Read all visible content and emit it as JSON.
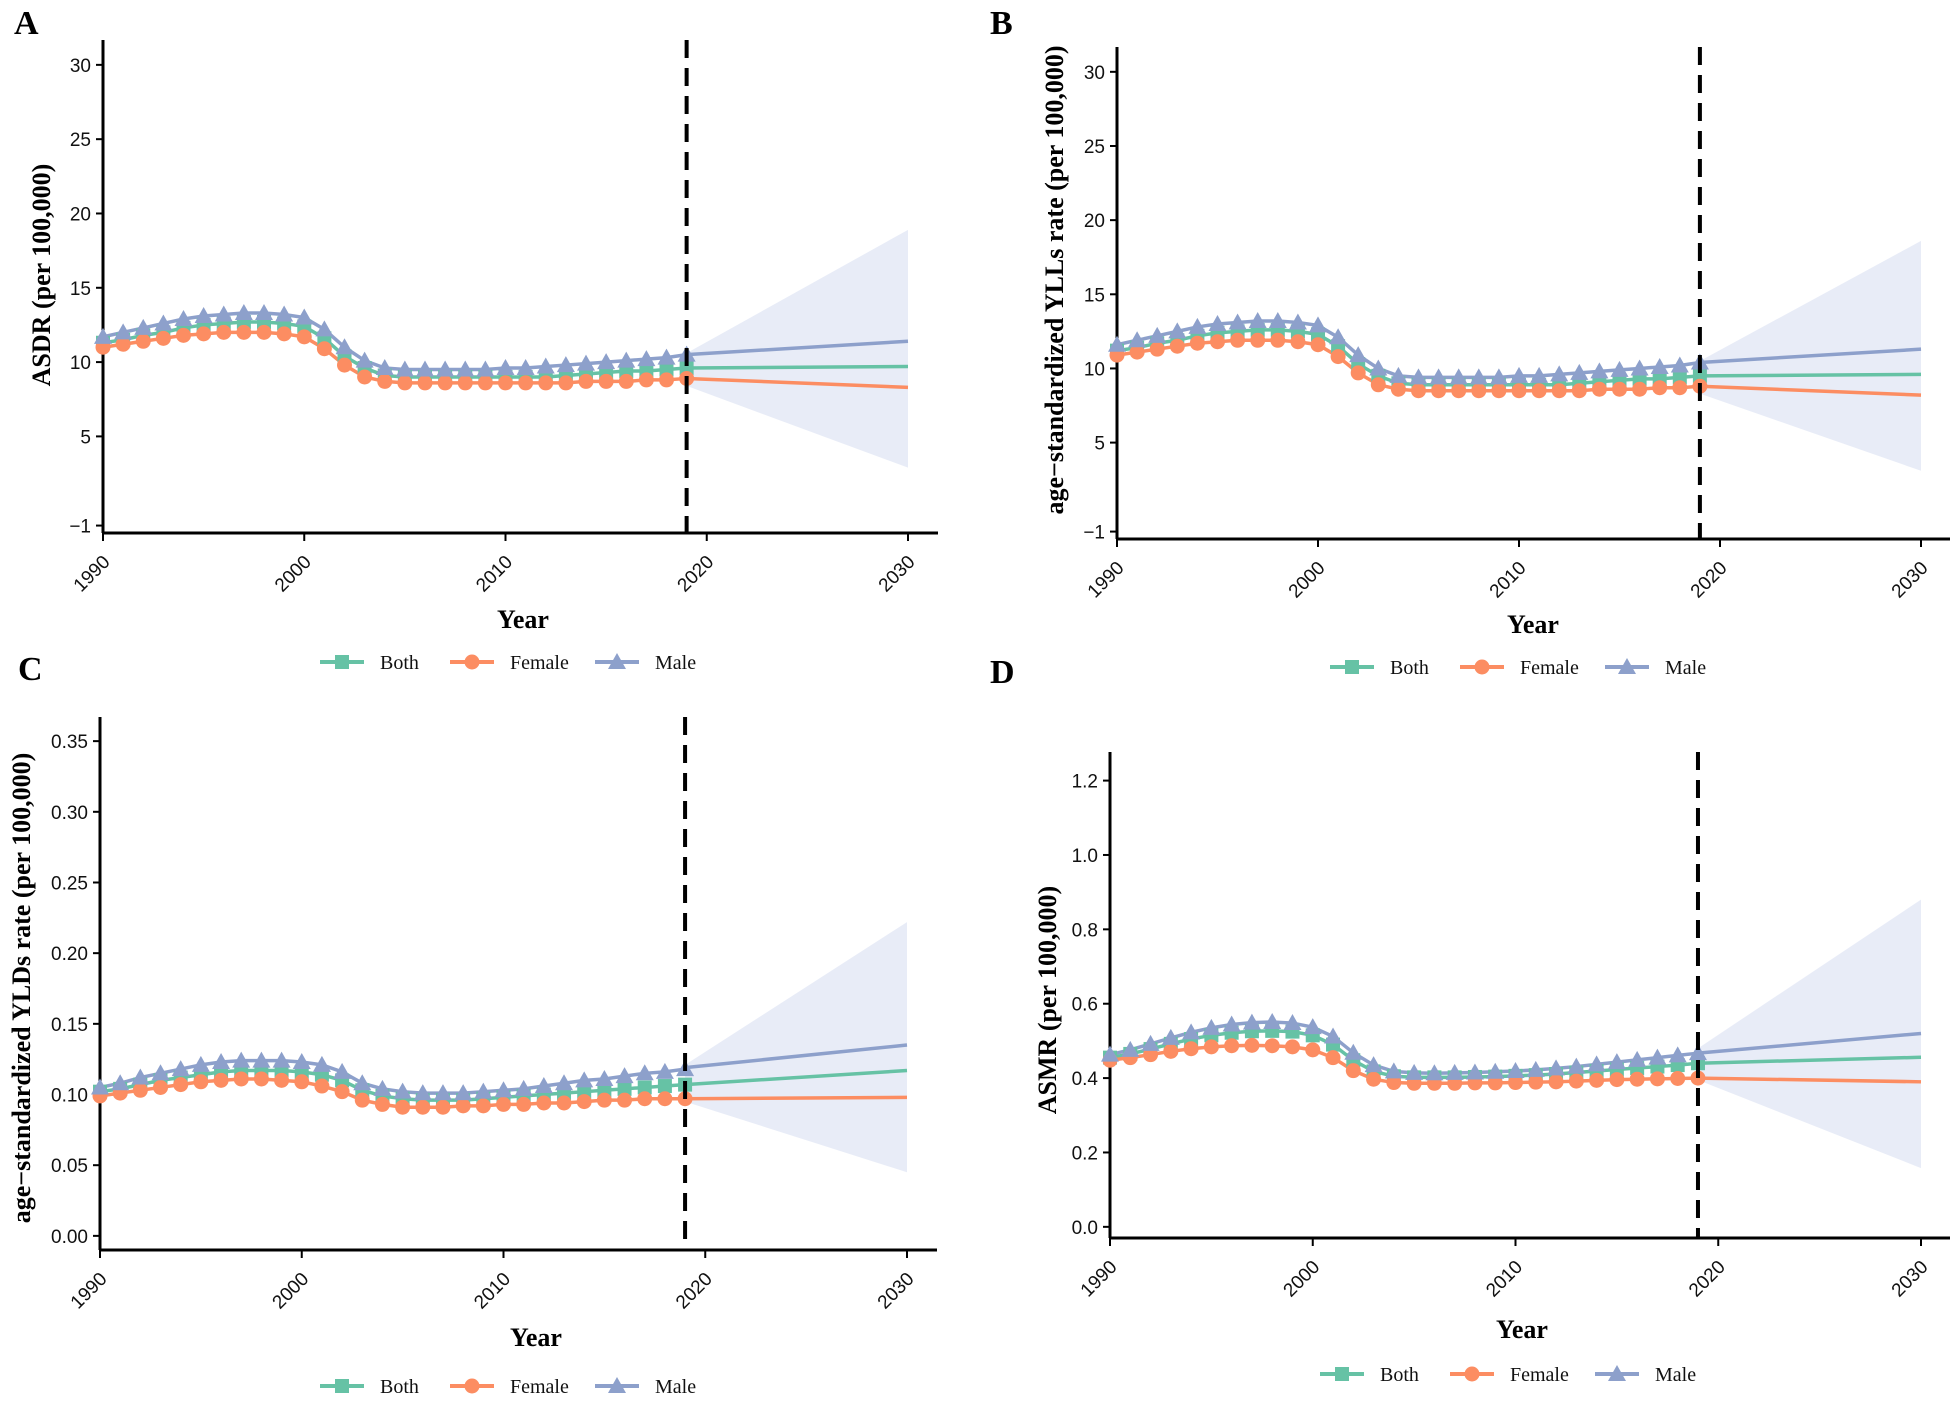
{
  "colors": {
    "both": "#66c2a5",
    "female": "#fc8d62",
    "male": "#8da0cb",
    "band": "#e4e9f6",
    "axis": "#000000"
  },
  "legend": {
    "both": "Both",
    "female": "Female",
    "male": "Male"
  },
  "chart_data": [
    {
      "id": "A",
      "letter": "A",
      "type": "line",
      "xlabel": "Year",
      "ylabel": "ASDR (per 100,000)",
      "xlim": [
        1990,
        2030
      ],
      "ylim": [
        -1.5,
        31
      ],
      "xticks": [
        1990,
        2000,
        2010,
        2020,
        2030
      ],
      "yticks": [
        -1,
        5,
        10,
        15,
        20,
        25,
        30
      ],
      "ytick_labels": [
        "−1",
        "5",
        "10",
        "15",
        "20",
        "25",
        "30"
      ],
      "observed_end": 2019,
      "x": [
        1990,
        1991,
        1992,
        1993,
        1994,
        1995,
        1996,
        1997,
        1998,
        1999,
        2000,
        2001,
        2002,
        2003,
        2004,
        2005,
        2006,
        2007,
        2008,
        2009,
        2010,
        2011,
        2012,
        2013,
        2014,
        2015,
        2016,
        2017,
        2018,
        2019
      ],
      "series": [
        {
          "key": "both",
          "name": "Both",
          "values": [
            11.3,
            11.5,
            11.8,
            12.0,
            12.3,
            12.5,
            12.6,
            12.7,
            12.7,
            12.6,
            12.4,
            11.6,
            10.4,
            9.6,
            9.1,
            9.0,
            9.0,
            9.0,
            9.0,
            9.0,
            9.0,
            9.0,
            9.0,
            9.1,
            9.2,
            9.3,
            9.4,
            9.4,
            9.5,
            9.6
          ]
        },
        {
          "key": "female",
          "name": "Female",
          "values": [
            11.0,
            11.2,
            11.4,
            11.6,
            11.8,
            11.9,
            12.0,
            12.0,
            12.0,
            11.9,
            11.7,
            10.9,
            9.8,
            9.0,
            8.7,
            8.6,
            8.6,
            8.6,
            8.6,
            8.6,
            8.6,
            8.6,
            8.6,
            8.6,
            8.7,
            8.7,
            8.7,
            8.8,
            8.8,
            8.9
          ]
        },
        {
          "key": "male",
          "name": "Male",
          "values": [
            11.7,
            12.0,
            12.3,
            12.6,
            12.9,
            13.1,
            13.2,
            13.3,
            13.3,
            13.2,
            13.0,
            12.2,
            11.0,
            10.1,
            9.6,
            9.5,
            9.5,
            9.5,
            9.5,
            9.5,
            9.6,
            9.6,
            9.7,
            9.8,
            9.9,
            10.0,
            10.1,
            10.2,
            10.3,
            10.5
          ]
        }
      ],
      "projection": {
        "x": [
          2019,
          2030
        ],
        "series": [
          {
            "key": "both",
            "values": [
              9.6,
              9.7
            ]
          },
          {
            "key": "female",
            "values": [
              8.9,
              8.3
            ]
          },
          {
            "key": "male",
            "values": [
              10.5,
              11.4
            ]
          }
        ],
        "band_upper": [
          10.6,
          18.9
        ],
        "band_lower": [
          8.4,
          2.9
        ]
      }
    },
    {
      "id": "B",
      "letter": "B",
      "type": "line",
      "xlabel": "Year",
      "ylabel": "age−standardized YLLs rate (per 100,000)",
      "xlim": [
        1990,
        2030
      ],
      "ylim": [
        -1.5,
        31
      ],
      "xticks": [
        1990,
        2000,
        2010,
        2020,
        2030
      ],
      "yticks": [
        -1,
        5,
        10,
        15,
        20,
        25,
        30
      ],
      "ytick_labels": [
        "−1",
        "5",
        "10",
        "15",
        "20",
        "25",
        "30"
      ],
      "observed_end": 2019,
      "x": [
        1990,
        1991,
        1992,
        1993,
        1994,
        1995,
        1996,
        1997,
        1998,
        1999,
        2000,
        2001,
        2002,
        2003,
        2004,
        2005,
        2006,
        2007,
        2008,
        2009,
        2010,
        2011,
        2012,
        2013,
        2014,
        2015,
        2016,
        2017,
        2018,
        2019
      ],
      "series": [
        {
          "key": "both",
          "name": "Both",
          "values": [
            11.2,
            11.4,
            11.7,
            11.9,
            12.2,
            12.4,
            12.5,
            12.6,
            12.6,
            12.5,
            12.3,
            11.5,
            10.3,
            9.5,
            9.0,
            8.9,
            8.9,
            8.9,
            8.9,
            8.9,
            8.9,
            8.9,
            8.9,
            9.0,
            9.1,
            9.2,
            9.3,
            9.3,
            9.4,
            9.5
          ]
        },
        {
          "key": "female",
          "name": "Female",
          "values": [
            10.9,
            11.1,
            11.3,
            11.5,
            11.7,
            11.8,
            11.9,
            11.9,
            11.9,
            11.8,
            11.6,
            10.8,
            9.7,
            8.9,
            8.6,
            8.5,
            8.5,
            8.5,
            8.5,
            8.5,
            8.5,
            8.5,
            8.5,
            8.5,
            8.6,
            8.6,
            8.6,
            8.7,
            8.7,
            8.8
          ]
        },
        {
          "key": "male",
          "name": "Male",
          "values": [
            11.6,
            11.9,
            12.2,
            12.5,
            12.8,
            13.0,
            13.1,
            13.2,
            13.2,
            13.1,
            12.9,
            12.1,
            10.9,
            10.0,
            9.5,
            9.4,
            9.4,
            9.4,
            9.4,
            9.4,
            9.5,
            9.5,
            9.6,
            9.7,
            9.8,
            9.9,
            10.0,
            10.1,
            10.2,
            10.4
          ]
        }
      ],
      "projection": {
        "x": [
          2019,
          2030
        ],
        "series": [
          {
            "key": "both",
            "values": [
              9.5,
              9.6
            ]
          },
          {
            "key": "female",
            "values": [
              8.8,
              8.2
            ]
          },
          {
            "key": "male",
            "values": [
              10.4,
              11.3
            ]
          }
        ],
        "band_upper": [
          10.5,
          18.6
        ],
        "band_lower": [
          8.3,
          3.1
        ]
      }
    },
    {
      "id": "C",
      "letter": "C",
      "type": "line",
      "xlabel": "Year",
      "ylabel": "age−standardized YLDs rate (per 100,000)",
      "xlim": [
        1990,
        2030
      ],
      "ylim": [
        -0.01,
        0.36
      ],
      "xticks": [
        1990,
        2000,
        2010,
        2020,
        2030
      ],
      "yticks": [
        0.0,
        0.05,
        0.1,
        0.15,
        0.2,
        0.25,
        0.3,
        0.35
      ],
      "ytick_labels": [
        "0.00",
        "0.05",
        "0.10",
        "0.15",
        "0.20",
        "0.25",
        "0.30",
        "0.35"
      ],
      "observed_end": 2019,
      "x": [
        1990,
        1991,
        1992,
        1993,
        1994,
        1995,
        1996,
        1997,
        1998,
        1999,
        2000,
        2001,
        2002,
        2003,
        2004,
        2005,
        2006,
        2007,
        2008,
        2009,
        2010,
        2011,
        2012,
        2013,
        2014,
        2015,
        2016,
        2017,
        2018,
        2019
      ],
      "series": [
        {
          "key": "both",
          "name": "Both",
          "values": [
            0.102,
            0.104,
            0.107,
            0.11,
            0.112,
            0.114,
            0.116,
            0.117,
            0.117,
            0.117,
            0.116,
            0.114,
            0.11,
            0.103,
            0.099,
            0.097,
            0.096,
            0.096,
            0.096,
            0.097,
            0.098,
            0.099,
            0.1,
            0.101,
            0.102,
            0.103,
            0.104,
            0.105,
            0.106,
            0.107
          ]
        },
        {
          "key": "female",
          "name": "Female",
          "values": [
            0.099,
            0.101,
            0.103,
            0.105,
            0.107,
            0.109,
            0.11,
            0.111,
            0.111,
            0.11,
            0.109,
            0.106,
            0.102,
            0.096,
            0.093,
            0.091,
            0.091,
            0.091,
            0.092,
            0.092,
            0.093,
            0.093,
            0.094,
            0.094,
            0.095,
            0.096,
            0.096,
            0.097,
            0.097,
            0.097
          ]
        },
        {
          "key": "male",
          "name": "Male",
          "values": [
            0.105,
            0.108,
            0.112,
            0.115,
            0.118,
            0.121,
            0.123,
            0.124,
            0.124,
            0.124,
            0.123,
            0.121,
            0.116,
            0.108,
            0.104,
            0.102,
            0.101,
            0.101,
            0.101,
            0.102,
            0.103,
            0.104,
            0.106,
            0.108,
            0.11,
            0.111,
            0.113,
            0.115,
            0.116,
            0.118
          ]
        }
      ],
      "projection": {
        "x": [
          2019,
          2030
        ],
        "series": [
          {
            "key": "both",
            "values": [
              0.107,
              0.117
            ]
          },
          {
            "key": "female",
            "values": [
              0.097,
              0.098
            ]
          },
          {
            "key": "male",
            "values": [
              0.119,
              0.135
            ]
          }
        ],
        "band_upper": [
          0.121,
          0.222
        ],
        "band_lower": [
          0.095,
          0.045
        ]
      }
    },
    {
      "id": "D",
      "letter": "D",
      "type": "line",
      "xlabel": "Year",
      "ylabel": "ASMR (per 100,000)",
      "xlim": [
        1990,
        2030
      ],
      "ylim": [
        -0.03,
        1.25
      ],
      "xticks": [
        1990,
        2000,
        2010,
        2020,
        2030
      ],
      "yticks": [
        0.0,
        0.2,
        0.4,
        0.6,
        0.8,
        1.0,
        1.2
      ],
      "ytick_labels": [
        "0.0",
        "0.2",
        "0.4",
        "0.6",
        "0.8",
        "1.0",
        "1.2"
      ],
      "observed_end": 2019,
      "x": [
        1990,
        1991,
        1992,
        1993,
        1994,
        1995,
        1996,
        1997,
        1998,
        1999,
        2000,
        2001,
        2002,
        2003,
        2004,
        2005,
        2006,
        2007,
        2008,
        2009,
        2010,
        2011,
        2012,
        2013,
        2014,
        2015,
        2016,
        2017,
        2018,
        2019
      ],
      "series": [
        {
          "key": "both",
          "name": "Both",
          "values": [
            0.455,
            0.465,
            0.478,
            0.492,
            0.505,
            0.515,
            0.522,
            0.526,
            0.527,
            0.525,
            0.515,
            0.49,
            0.448,
            0.418,
            0.405,
            0.402,
            0.402,
            0.402,
            0.403,
            0.404,
            0.406,
            0.408,
            0.411,
            0.415,
            0.419,
            0.423,
            0.427,
            0.431,
            0.435,
            0.44
          ]
        },
        {
          "key": "female",
          "name": "Female",
          "values": [
            0.448,
            0.455,
            0.463,
            0.472,
            0.479,
            0.484,
            0.487,
            0.488,
            0.487,
            0.484,
            0.476,
            0.455,
            0.42,
            0.397,
            0.388,
            0.386,
            0.386,
            0.386,
            0.387,
            0.387,
            0.388,
            0.389,
            0.39,
            0.392,
            0.394,
            0.396,
            0.397,
            0.398,
            0.399,
            0.4
          ]
        },
        {
          "key": "male",
          "name": "Male",
          "values": [
            0.463,
            0.476,
            0.492,
            0.508,
            0.523,
            0.535,
            0.544,
            0.549,
            0.551,
            0.548,
            0.537,
            0.512,
            0.468,
            0.435,
            0.418,
            0.414,
            0.413,
            0.414,
            0.415,
            0.417,
            0.419,
            0.422,
            0.426,
            0.431,
            0.437,
            0.443,
            0.449,
            0.455,
            0.461,
            0.467
          ]
        }
      ],
      "projection": {
        "x": [
          2019,
          2030
        ],
        "series": [
          {
            "key": "both",
            "values": [
              0.44,
              0.456
            ]
          },
          {
            "key": "female",
            "values": [
              0.4,
              0.39
            ]
          },
          {
            "key": "male",
            "values": [
              0.467,
              0.52
            ]
          }
        ],
        "band_upper": [
          0.48,
          0.88
        ],
        "band_lower": [
          0.395,
          0.158
        ]
      }
    }
  ]
}
